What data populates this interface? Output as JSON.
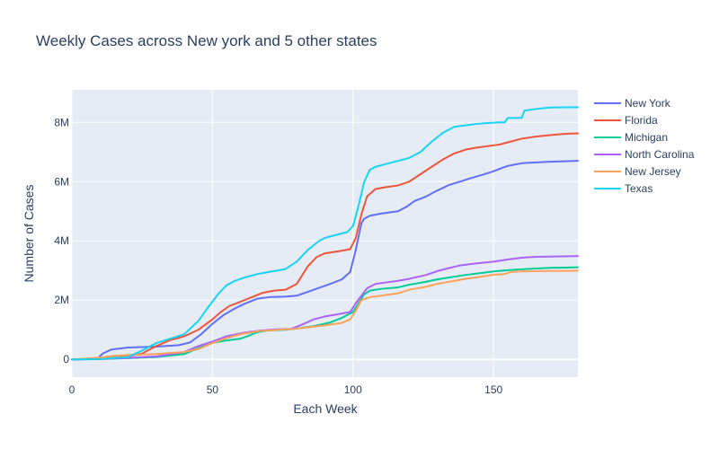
{
  "chart_data": {
    "type": "line",
    "title": "Weekly Cases across New york and 5 other states",
    "xlabel": "Each Week",
    "ylabel": "Number of Cases",
    "xlim": [
      0,
      180
    ],
    "ylim": [
      -600000,
      9100000
    ],
    "x_ticks": [
      0,
      50,
      100,
      150
    ],
    "x_tick_labels": [
      "0",
      "50",
      "100",
      "150"
    ],
    "y_ticks": [
      0,
      2000000,
      4000000,
      6000000,
      8000000
    ],
    "y_tick_labels": [
      "0",
      "2M",
      "4M",
      "6M",
      "8M"
    ],
    "grid": true,
    "legend_position": "top-right",
    "background_color": "#E5ECF6",
    "series": [
      {
        "name": "New York",
        "color": "#636EFA",
        "x": [
          0,
          9,
          11,
          14,
          20,
          30,
          38,
          42,
          46,
          50,
          54,
          58,
          62,
          66,
          70,
          76,
          80,
          86,
          92,
          96,
          99,
          101,
          103,
          104,
          106,
          110,
          116,
          119,
          122,
          126,
          130,
          134,
          138,
          142,
          146,
          150,
          153,
          155,
          160,
          165,
          170,
          176,
          180
        ],
        "y": [
          0,
          20000,
          200000,
          330000,
          400000,
          430000,
          480000,
          570000,
          850000,
          1200000,
          1500000,
          1720000,
          1900000,
          2050000,
          2100000,
          2120000,
          2150000,
          2350000,
          2550000,
          2700000,
          2950000,
          3700000,
          4600000,
          4750000,
          4850000,
          4920000,
          5000000,
          5150000,
          5350000,
          5500000,
          5700000,
          5880000,
          6000000,
          6120000,
          6230000,
          6350000,
          6460000,
          6530000,
          6620000,
          6650000,
          6670000,
          6690000,
          6700000
        ]
      },
      {
        "name": "Florida",
        "color": "#EF553B",
        "x": [
          0,
          10,
          15,
          20,
          25,
          30,
          35,
          40,
          45,
          50,
          53,
          56,
          60,
          64,
          68,
          72,
          76,
          80,
          84,
          87,
          90,
          95,
          99,
          101,
          103,
          105,
          108,
          112,
          116,
          120,
          124,
          128,
          132,
          136,
          140,
          144,
          148,
          152,
          156,
          160,
          165,
          170,
          175,
          180
        ],
        "y": [
          0,
          20000,
          50000,
          100000,
          200000,
          450000,
          650000,
          780000,
          1000000,
          1350000,
          1600000,
          1800000,
          1950000,
          2100000,
          2250000,
          2320000,
          2350000,
          2550000,
          3150000,
          3450000,
          3580000,
          3650000,
          3720000,
          4100000,
          4900000,
          5500000,
          5750000,
          5820000,
          5870000,
          6000000,
          6250000,
          6500000,
          6750000,
          6950000,
          7080000,
          7150000,
          7200000,
          7250000,
          7350000,
          7450000,
          7520000,
          7570000,
          7610000,
          7630000
        ]
      },
      {
        "name": "Michigan",
        "color": "#00CC96",
        "x": [
          0,
          10,
          20,
          30,
          40,
          45,
          50,
          55,
          60,
          63,
          66,
          70,
          76,
          80,
          86,
          92,
          96,
          100,
          102,
          104,
          106,
          110,
          116,
          120,
          126,
          130,
          136,
          140,
          146,
          150,
          156,
          160,
          166,
          170,
          176,
          180
        ],
        "y": [
          0,
          10000,
          40000,
          80000,
          180000,
          380000,
          560000,
          640000,
          700000,
          800000,
          920000,
          980000,
          1000000,
          1040000,
          1120000,
          1250000,
          1400000,
          1600000,
          1900000,
          2200000,
          2320000,
          2380000,
          2430000,
          2520000,
          2620000,
          2700000,
          2790000,
          2850000,
          2920000,
          2970000,
          3020000,
          3040000,
          3070000,
          3090000,
          3100000,
          3110000
        ]
      },
      {
        "name": "North Carolina",
        "color": "#AB63FA",
        "x": [
          0,
          10,
          20,
          30,
          40,
          45,
          50,
          55,
          60,
          64,
          68,
          72,
          78,
          82,
          86,
          90,
          95,
          99,
          101,
          103,
          105,
          108,
          112,
          116,
          120,
          126,
          130,
          134,
          138,
          142,
          146,
          150,
          155,
          160,
          165,
          170,
          176,
          180
        ],
        "y": [
          0,
          10000,
          50000,
          100000,
          250000,
          450000,
          600000,
          780000,
          880000,
          940000,
          980000,
          1010000,
          1030000,
          1180000,
          1350000,
          1450000,
          1530000,
          1600000,
          1900000,
          2150000,
          2400000,
          2550000,
          2600000,
          2650000,
          2720000,
          2850000,
          2980000,
          3080000,
          3170000,
          3220000,
          3260000,
          3300000,
          3370000,
          3430000,
          3460000,
          3470000,
          3480000,
          3490000
        ]
      },
      {
        "name": "New Jersey",
        "color": "#FFA15A",
        "x": [
          0,
          10,
          15,
          20,
          30,
          40,
          45,
          50,
          55,
          60,
          66,
          72,
          78,
          84,
          90,
          96,
          99,
          101,
          103,
          106,
          110,
          116,
          120,
          126,
          130,
          136,
          140,
          146,
          150,
          154,
          156,
          160,
          166,
          170,
          176,
          180
        ],
        "y": [
          0,
          60000,
          120000,
          150000,
          180000,
          250000,
          350000,
          550000,
          720000,
          850000,
          950000,
          990000,
          1020000,
          1080000,
          1150000,
          1230000,
          1350000,
          1650000,
          2000000,
          2100000,
          2150000,
          2230000,
          2350000,
          2450000,
          2550000,
          2650000,
          2720000,
          2800000,
          2860000,
          2880000,
          2950000,
          2970000,
          2980000,
          2985000,
          2990000,
          2995000
        ]
      },
      {
        "name": "Texas",
        "color": "#19D3F3",
        "x": [
          0,
          10,
          20,
          25,
          30,
          35,
          40,
          45,
          48,
          52,
          55,
          58,
          62,
          66,
          70,
          76,
          80,
          84,
          88,
          90,
          94,
          98,
          100,
          102,
          104,
          106,
          108,
          112,
          116,
          120,
          124,
          128,
          132,
          136,
          140,
          144,
          148,
          152,
          154,
          155,
          160,
          161,
          165,
          170,
          175,
          180
        ],
        "y": [
          0,
          10000,
          80000,
          300000,
          550000,
          700000,
          850000,
          1300000,
          1700000,
          2200000,
          2500000,
          2650000,
          2780000,
          2880000,
          2950000,
          3050000,
          3300000,
          3700000,
          4000000,
          4100000,
          4200000,
          4300000,
          4500000,
          5200000,
          6000000,
          6400000,
          6500000,
          6600000,
          6700000,
          6800000,
          7000000,
          7350000,
          7650000,
          7850000,
          7900000,
          7950000,
          7980000,
          8000000,
          8000000,
          8150000,
          8150000,
          8400000,
          8450000,
          8500000,
          8510000,
          8510000
        ]
      }
    ]
  }
}
